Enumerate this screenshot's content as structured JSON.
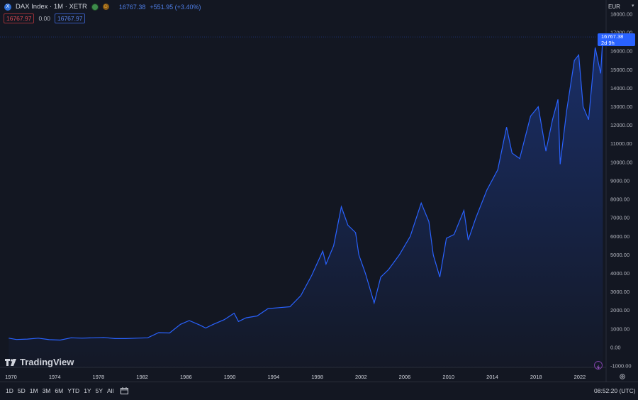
{
  "header": {
    "symbol_logo": "X",
    "title": "DAX Index · 1M · XETR",
    "status_letter": "D",
    "last_price": "16767.38",
    "change": "+551.95 (+3.40%)",
    "sell_price": "16767.97",
    "spread": "0.00",
    "buy_price": "16767.97",
    "currency": "EUR"
  },
  "price_tag": {
    "value": "16767.38",
    "countdown": "2d 9h"
  },
  "watermark": "TradingView",
  "bottom_bar": {
    "ranges": [
      "1D",
      "5D",
      "1M",
      "3M",
      "6M",
      "YTD",
      "1Y",
      "5Y",
      "All"
    ],
    "clock": "08:52:20 (UTC)"
  },
  "icons": {
    "logo": "x-circle-icon",
    "market_status": "status-dot-icon",
    "data_delay": "d-badge-icon",
    "date_range": "calendar-icon",
    "alert": "lightning-icon",
    "settings": "gear-icon"
  },
  "colors": {
    "background": "#131722",
    "line": "#2962ff",
    "sell": "#e04a52",
    "buy": "#5b86f0"
  },
  "chart_data": {
    "type": "area",
    "series": [
      {
        "name": "DAX Index",
        "x": [
          1969.8,
          1970.5,
          1971.5,
          1972.5,
          1973.5,
          1974.5,
          1975.5,
          1976.5,
          1977.5,
          1978.5,
          1979.5,
          1980.5,
          1981.5,
          1982.5,
          1983.5,
          1984.5,
          1985.5,
          1986.3,
          1987.3,
          1987.8,
          1988.5,
          1989.5,
          1990.4,
          1990.8,
          1991.5,
          1992.5,
          1993.5,
          1994.5,
          1995.5,
          1996.5,
          1997.5,
          1998.5,
          1998.8,
          1999.5,
          2000.2,
          2000.8,
          2001.5,
          2001.8,
          2002.4,
          2003.2,
          2003.8,
          2004.5,
          2005.5,
          2006.5,
          2007.5,
          2008.2,
          2008.6,
          2009.2,
          2009.8,
          2010.5,
          2011.4,
          2011.8,
          2012.5,
          2013.5,
          2014.5,
          2015.3,
          2015.8,
          2016.5,
          2017.5,
          2018.2,
          2018.9,
          2019.5,
          2020.0,
          2020.2,
          2020.8,
          2021.5,
          2021.9,
          2022.3,
          2022.8,
          2023.4,
          2023.9,
          2024.1
        ],
        "y": [
          500,
          430,
          450,
          500,
          420,
          400,
          520,
          500,
          520,
          540,
          480,
          480,
          500,
          520,
          800,
          780,
          1250,
          1450,
          1200,
          1050,
          1250,
          1500,
          1850,
          1400,
          1600,
          1700,
          2100,
          2150,
          2200,
          2800,
          3900,
          5200,
          4500,
          5500,
          7600,
          6600,
          6200,
          5000,
          4000,
          2400,
          3800,
          4200,
          5000,
          6000,
          7800,
          6800,
          5000,
          3800,
          5900,
          6100,
          7400,
          5800,
          7000,
          8500,
          9600,
          11900,
          10500,
          10200,
          12500,
          13000,
          10600,
          12300,
          13400,
          9900,
          12800,
          15500,
          15800,
          13000,
          12300,
          16200,
          14800,
          16767
        ]
      }
    ],
    "y_ticks": [
      -1000,
      0,
      1000,
      2000,
      3000,
      4000,
      5000,
      6000,
      7000,
      8000,
      9000,
      10000,
      11000,
      12000,
      13000,
      14000,
      15000,
      16000,
      17000,
      18000
    ],
    "x_ticks": [
      1970,
      1974,
      1978,
      1982,
      1986,
      1990,
      1994,
      1998,
      2002,
      2006,
      2010,
      2014,
      2018,
      2022
    ],
    "xlim": [
      1969,
      2024.4
    ],
    "ylim": [
      -1000,
      18000
    ],
    "grid": false,
    "last_value": 16767.38
  }
}
